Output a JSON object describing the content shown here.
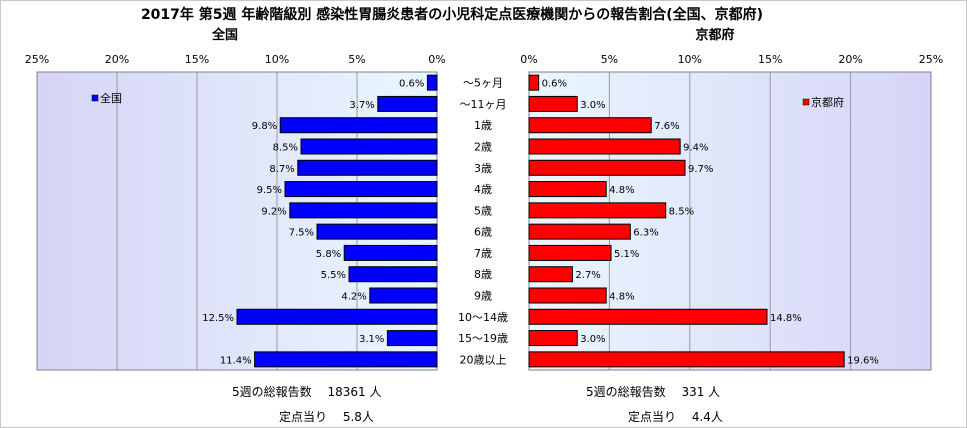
{
  "chart_data": {
    "type": "bar",
    "title": "2017年 第5週 年齢階級別 感染性胃腸炎患者の小児科定点医療機関からの報告割合(全国、京都府)",
    "categories": [
      "～5ヶ月",
      "～11ヶ月",
      "1歳",
      "2歳",
      "3歳",
      "4歳",
      "5歳",
      "6歳",
      "7歳",
      "8歳",
      "9歳",
      "10～14歳",
      "15～19歳",
      "20歳以上"
    ],
    "tick_labels": [
      "0%",
      "5%",
      "10%",
      "15%",
      "20%",
      "25%"
    ],
    "xlim": [
      0,
      25
    ],
    "left_panel": {
      "title": "全国",
      "legend": "全国",
      "color": "#0000FF",
      "values": [
        0.6,
        3.7,
        9.8,
        8.5,
        8.7,
        9.5,
        9.2,
        7.5,
        5.8,
        5.5,
        4.2,
        12.5,
        3.1,
        11.4
      ],
      "labels": [
        "0.6%",
        "3.7%",
        "9.8%",
        "8.5%",
        "8.7%",
        "9.5%",
        "9.2%",
        "7.5%",
        "5.8%",
        "5.5%",
        "4.2%",
        "12.5%",
        "3.1%",
        "11.4%"
      ]
    },
    "right_panel": {
      "title": "京都府",
      "legend": "京都府",
      "color": "#FF0000",
      "values": [
        0.6,
        3.0,
        7.6,
        9.4,
        9.7,
        4.8,
        8.5,
        6.3,
        5.1,
        2.7,
        4.8,
        14.8,
        3.0,
        19.6
      ],
      "labels": [
        "0.6%",
        "3.0%",
        "7.6%",
        "9.4%",
        "9.7%",
        "4.8%",
        "8.5%",
        "6.3%",
        "5.1%",
        "2.7%",
        "4.8%",
        "14.8%",
        "3.0%",
        "19.6%"
      ]
    },
    "grid": true
  },
  "footer": {
    "left_total": "5週の総報告数　 18361 人",
    "left_per": "定点当り　 5.8人",
    "right_total": "5週の総報告数　 331 人",
    "right_per": "定点当り　 4.4人"
  }
}
